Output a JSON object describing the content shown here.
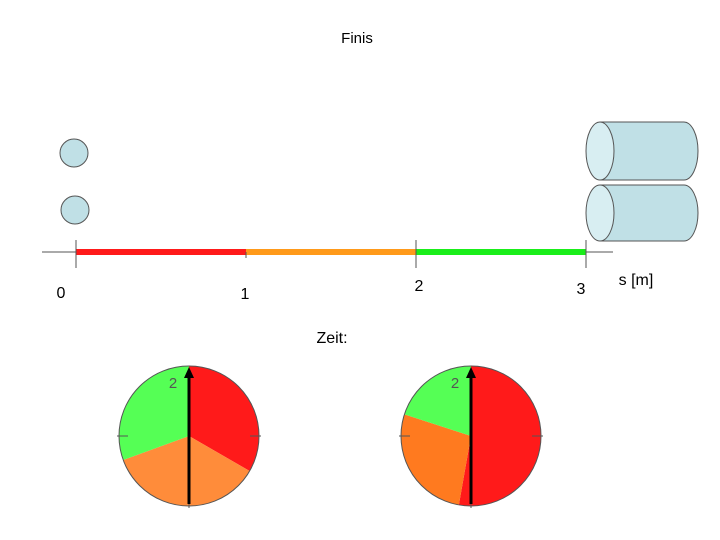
{
  "title": "Finis",
  "axis": {
    "tick_labels": [
      "0",
      "1",
      "2",
      "3"
    ],
    "unit_label": "s [m]"
  },
  "time_label": "Zeit:",
  "track_segments": [
    {
      "from": 0,
      "to": 1,
      "color": "#ff1a1a"
    },
    {
      "from": 1,
      "to": 2,
      "color": "#ff9a1a"
    },
    {
      "from": 2,
      "to": 3,
      "color": "#1aee1a"
    }
  ],
  "clocks": [
    {
      "label": "2",
      "sectors": [
        {
          "name": "red",
          "color": "#ff1a1a",
          "from_deg": 0,
          "to_deg": 120
        },
        {
          "name": "orange",
          "color": "#ff8c3a",
          "from_deg": 120,
          "to_deg": 250
        },
        {
          "name": "green",
          "color": "#55ff55",
          "from_deg": 250,
          "to_deg": 360
        }
      ]
    },
    {
      "label": "2",
      "sectors": [
        {
          "name": "red",
          "color": "#ff1a1a",
          "from_deg": 0,
          "to_deg": 190
        },
        {
          "name": "orange",
          "color": "#ff7a1f",
          "from_deg": 190,
          "to_deg": 288
        },
        {
          "name": "green",
          "color": "#55ff55",
          "from_deg": 288,
          "to_deg": 360
        }
      ]
    }
  ],
  "colors": {
    "object_fill": "#c0e0e6",
    "object_stroke": "#555555",
    "axis": "#555555",
    "hand": "#000000"
  }
}
